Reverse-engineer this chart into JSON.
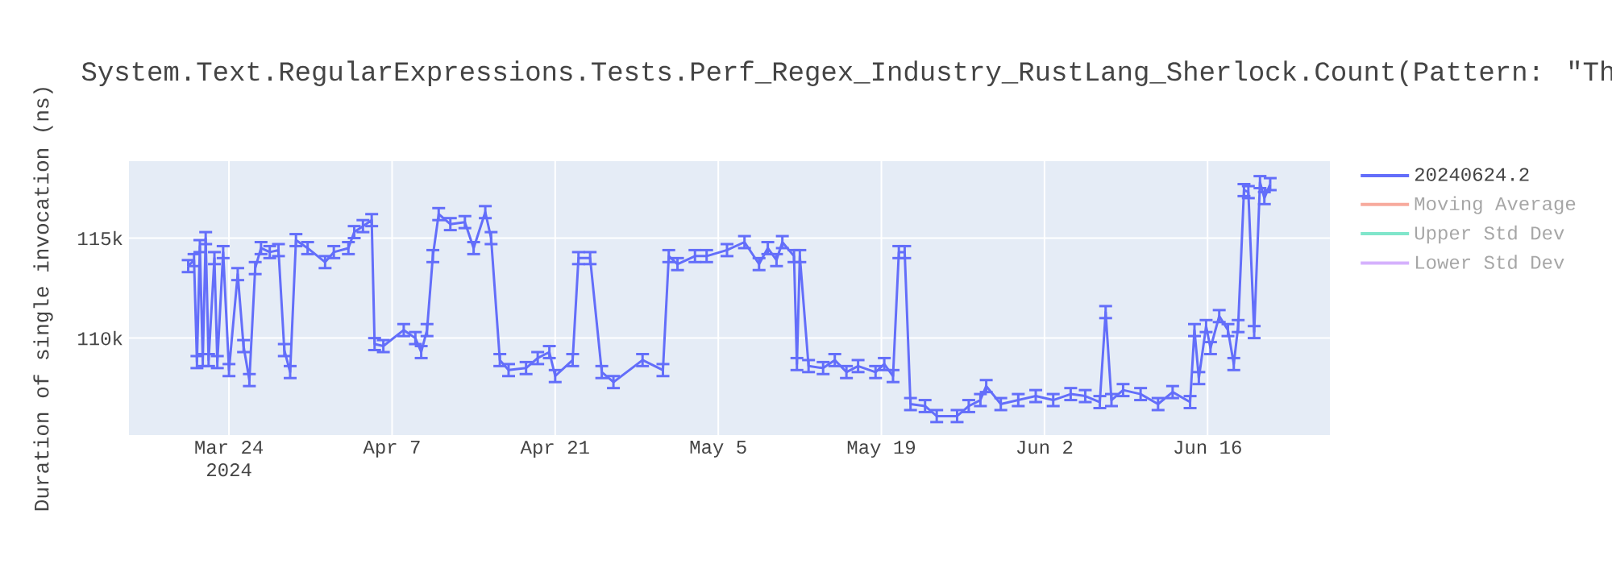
{
  "chart_data": {
    "type": "line",
    "title": "System.Text.RegularExpressions.Tests.Perf_Regex_Industry_RustLang_Sherlock.Count(Pattern: \"Th",
    "ylabel": "Duration of single invocation (ns)",
    "xlim": [
      "2024-03-15T10:00",
      "2024-06-26T12:00"
    ],
    "xticks": [
      {
        "value": "2024-03-24",
        "label": "Mar 24\n2024"
      },
      {
        "value": "2024-04-07",
        "label": "Apr 7"
      },
      {
        "value": "2024-04-21",
        "label": "Apr 21"
      },
      {
        "value": "2024-05-05",
        "label": "May 5"
      },
      {
        "value": "2024-05-19",
        "label": "May 19"
      },
      {
        "value": "2024-06-02",
        "label": "Jun 2"
      },
      {
        "value": "2024-06-16",
        "label": "Jun 16"
      }
    ],
    "ylim": [
      105150,
      118850
    ],
    "yticks": [
      {
        "value": 110000,
        "label": "110k"
      },
      {
        "value": 115000,
        "label": "115k"
      }
    ],
    "grid": true,
    "legend": "top right",
    "marker": "none",
    "line_style": "solid",
    "series": [
      {
        "name": "20240624.2",
        "color": "#636efa",
        "x": [
          "2024-03-20T12:00",
          "2024-03-21T00:00",
          "2024-03-21T06:00",
          "2024-03-21T12:00",
          "2024-03-21T18:00",
          "2024-03-22T00:00",
          "2024-03-22T06:00",
          "2024-03-22T18:00",
          "2024-03-23T00:00",
          "2024-03-23T12:00",
          "2024-03-24T00:00",
          "2024-03-24T18:00",
          "2024-03-25T06:00",
          "2024-03-25T18:00",
          "2024-03-26T06:00",
          "2024-03-26T18:00",
          "2024-03-27T12:00",
          "2024-03-28T06:00",
          "2024-03-28T18:00",
          "2024-03-29T06:00",
          "2024-03-29T18:00",
          "2024-03-30T18:00",
          "2024-04-01T06:00",
          "2024-04-02T00:00",
          "2024-04-03T06:00",
          "2024-04-03T18:00",
          "2024-04-04T12:00",
          "2024-04-05T06:00",
          "2024-04-05T12:00",
          "2024-04-06T06:00",
          "2024-04-08T00:00",
          "2024-04-09T00:00",
          "2024-04-09T12:00",
          "2024-04-10T00:00",
          "2024-04-10T12:00",
          "2024-04-11T00:00",
          "2024-04-12T00:00",
          "2024-04-13T06:00",
          "2024-04-14T00:00",
          "2024-04-15T00:00",
          "2024-04-15T12:00",
          "2024-04-16T06:00",
          "2024-04-17T00:00",
          "2024-04-18T12:00",
          "2024-04-19T12:00",
          "2024-04-20T12:00",
          "2024-04-21T00:00",
          "2024-04-22T12:00",
          "2024-04-23T00:00",
          "2024-04-24T00:00",
          "2024-04-25T00:00",
          "2024-04-26T00:00",
          "2024-04-28T12:00",
          "2024-04-30T06:00",
          "2024-04-30T18:00",
          "2024-05-01T12:00",
          "2024-05-03T00:00",
          "2024-05-04T00:00",
          "2024-05-05T18:00",
          "2024-05-07T06:00",
          "2024-05-08T12:00",
          "2024-05-09T06:00",
          "2024-05-10T00:00",
          "2024-05-10T12:00",
          "2024-05-11T12:00",
          "2024-05-11T18:00",
          "2024-05-12T00:00",
          "2024-05-12T18:00",
          "2024-05-14T00:00",
          "2024-05-15T00:00",
          "2024-05-16T00:00",
          "2024-05-17T00:00",
          "2024-05-18T12:00",
          "2024-05-19T06:00",
          "2024-05-20T00:00",
          "2024-05-20T12:00",
          "2024-05-21T00:00",
          "2024-05-21T12:00",
          "2024-05-22T18:00",
          "2024-05-23T18:00",
          "2024-05-25T12:00",
          "2024-05-26T12:00",
          "2024-05-27T12:00",
          "2024-05-28T00:00",
          "2024-05-29T06:00",
          "2024-05-30T18:00",
          "2024-06-01T06:00",
          "2024-06-02T18:00",
          "2024-06-04T06:00",
          "2024-06-05T12:00",
          "2024-06-06T18:00",
          "2024-06-07T06:00",
          "2024-06-07T18:00",
          "2024-06-08T18:00",
          "2024-06-10T06:00",
          "2024-06-11T18:00",
          "2024-06-13T00:00",
          "2024-06-14T12:00",
          "2024-06-14T21:00",
          "2024-06-15T06:00",
          "2024-06-15T21:00",
          "2024-06-16T06:00",
          "2024-06-17T00:00",
          "2024-06-17T18:00",
          "2024-06-18T06:00",
          "2024-06-18T15:00",
          "2024-06-19T03:00",
          "2024-06-19T12:00",
          "2024-06-20T00:00",
          "2024-06-20T12:00",
          "2024-06-20T21:00",
          "2024-06-21T09:00"
        ],
        "values": [
          113600,
          113900,
          108800,
          114600,
          108900,
          115000,
          108900,
          114000,
          108800,
          114300,
          108400,
          113200,
          109600,
          107900,
          113500,
          114500,
          114300,
          114400,
          109400,
          108300,
          114900,
          114500,
          113800,
          114300,
          114500,
          115300,
          115600,
          115900,
          109700,
          109600,
          110400,
          110000,
          109300,
          110400,
          114100,
          116200,
          115700,
          115800,
          114500,
          116300,
          115000,
          108900,
          108400,
          108500,
          109000,
          109300,
          108100,
          108900,
          114000,
          114000,
          108300,
          107800,
          108900,
          108400,
          114100,
          113700,
          114100,
          114100,
          114400,
          114800,
          113700,
          114500,
          113900,
          114800,
          114100,
          108700,
          114100,
          108600,
          108500,
          108900,
          108300,
          108600,
          108300,
          108700,
          108100,
          114300,
          114300,
          106700,
          106600,
          106100,
          106100,
          106600,
          106900,
          107600,
          106700,
          106900,
          107100,
          106900,
          107200,
          107100,
          106800,
          111300,
          106900,
          107400,
          107200,
          106700,
          107300,
          106800,
          110400,
          108000,
          110600,
          109500,
          111100,
          110400,
          108700,
          110600,
          117400,
          117300,
          110300,
          117800,
          117000,
          117700
        ],
        "errors": [
          300,
          300,
          300,
          300,
          300,
          300,
          300,
          300,
          300,
          300,
          300,
          300,
          300,
          300,
          300,
          300,
          300,
          300,
          300,
          300,
          300,
          300,
          300,
          300,
          300,
          300,
          300,
          300,
          300,
          300,
          300,
          300,
          300,
          300,
          300,
          300,
          300,
          300,
          300,
          300,
          300,
          300,
          300,
          300,
          300,
          300,
          300,
          300,
          300,
          300,
          300,
          300,
          300,
          300,
          300,
          300,
          300,
          300,
          300,
          300,
          300,
          300,
          300,
          300,
          300,
          300,
          300,
          300,
          300,
          300,
          300,
          300,
          300,
          300,
          300,
          300,
          300,
          300,
          300,
          300,
          300,
          300,
          300,
          300,
          300,
          300,
          300,
          300,
          300,
          300,
          300,
          300,
          300,
          300,
          300,
          300,
          300,
          300,
          300,
          300,
          300,
          300,
          300,
          300,
          300,
          300,
          300,
          300,
          300,
          300,
          300,
          300
        ]
      },
      {
        "name": "Moving Average",
        "color": "#f7aa9d"
      },
      {
        "name": "Upper Std Dev",
        "color": "#80e6cb"
      },
      {
        "name": "Lower Std Dev",
        "color": "#d5b1fd"
      }
    ]
  }
}
